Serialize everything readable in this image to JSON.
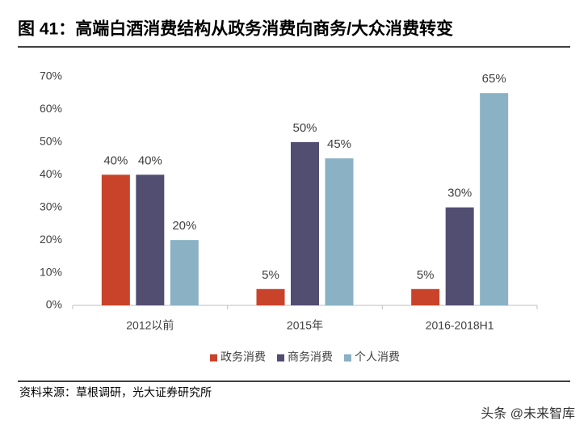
{
  "chart_data": {
    "type": "bar",
    "title": "图 41：高端白酒消费结构从政务消费向商务/大众消费转变",
    "source": "资料来源：草根调研，光大证券研究所",
    "categories": [
      "2012以前",
      "2015年",
      "2016-2018H1"
    ],
    "series": [
      {
        "name": "政务消费",
        "color": "#c9432a",
        "values": [
          40,
          5,
          5
        ],
        "value_labels": [
          "40%",
          "5%",
          "5%"
        ]
      },
      {
        "name": "商务消费",
        "color": "#524e72",
        "values": [
          40,
          50,
          30
        ],
        "value_labels": [
          "40%",
          "50%",
          "30%"
        ]
      },
      {
        "name": "个人消费",
        "color": "#8ab1c4",
        "values": [
          20,
          45,
          65
        ],
        "value_labels": [
          "20%",
          "45%",
          "65%"
        ]
      }
    ],
    "ylim": [
      0,
      70
    ],
    "yticks": [
      {
        "value": 0,
        "label": "0%"
      },
      {
        "value": 10,
        "label": "10%"
      },
      {
        "value": 20,
        "label": "20%"
      },
      {
        "value": 30,
        "label": "30%"
      },
      {
        "value": 40,
        "label": "40%"
      },
      {
        "value": 50,
        "label": "50%"
      },
      {
        "value": 60,
        "label": "60%"
      },
      {
        "value": 70,
        "label": "70%"
      }
    ],
    "grid": false,
    "legend": "bottom"
  },
  "watermark": "头条 @未来智库"
}
